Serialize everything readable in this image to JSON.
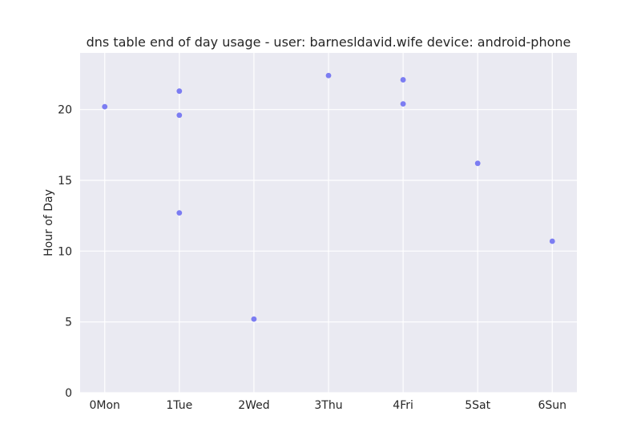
{
  "chart_data": {
    "type": "scatter",
    "title": "dns table end of day usage -  user: barnesldavid.wife device: android-phone",
    "xlabel": "",
    "ylabel": "Hour of Day",
    "categories": [
      "0Mon",
      "1Tue",
      "2Wed",
      "3Thu",
      "4Fri",
      "5Sat",
      "6Sun"
    ],
    "xlim": [
      -0.33,
      6.33
    ],
    "ylim": [
      0,
      24
    ],
    "yticks": [
      0,
      5,
      10,
      15,
      20
    ],
    "grid": true,
    "legend": "none",
    "series": [
      {
        "points": [
          {
            "x": 0,
            "y": 20.2
          },
          {
            "x": 1,
            "y": 21.3
          },
          {
            "x": 1,
            "y": 19.6
          },
          {
            "x": 1,
            "y": 12.7
          },
          {
            "x": 2,
            "y": 5.2
          },
          {
            "x": 3,
            "y": 22.4
          },
          {
            "x": 4,
            "y": 22.1
          },
          {
            "x": 4,
            "y": 20.4
          },
          {
            "x": 5,
            "y": 16.2
          },
          {
            "x": 6,
            "y": 10.7
          }
        ]
      }
    ],
    "colors": {
      "plot_background": "#EAEAF2",
      "grid": "#FFFFFF",
      "point": "#6F70F2",
      "text": "#262626"
    }
  }
}
